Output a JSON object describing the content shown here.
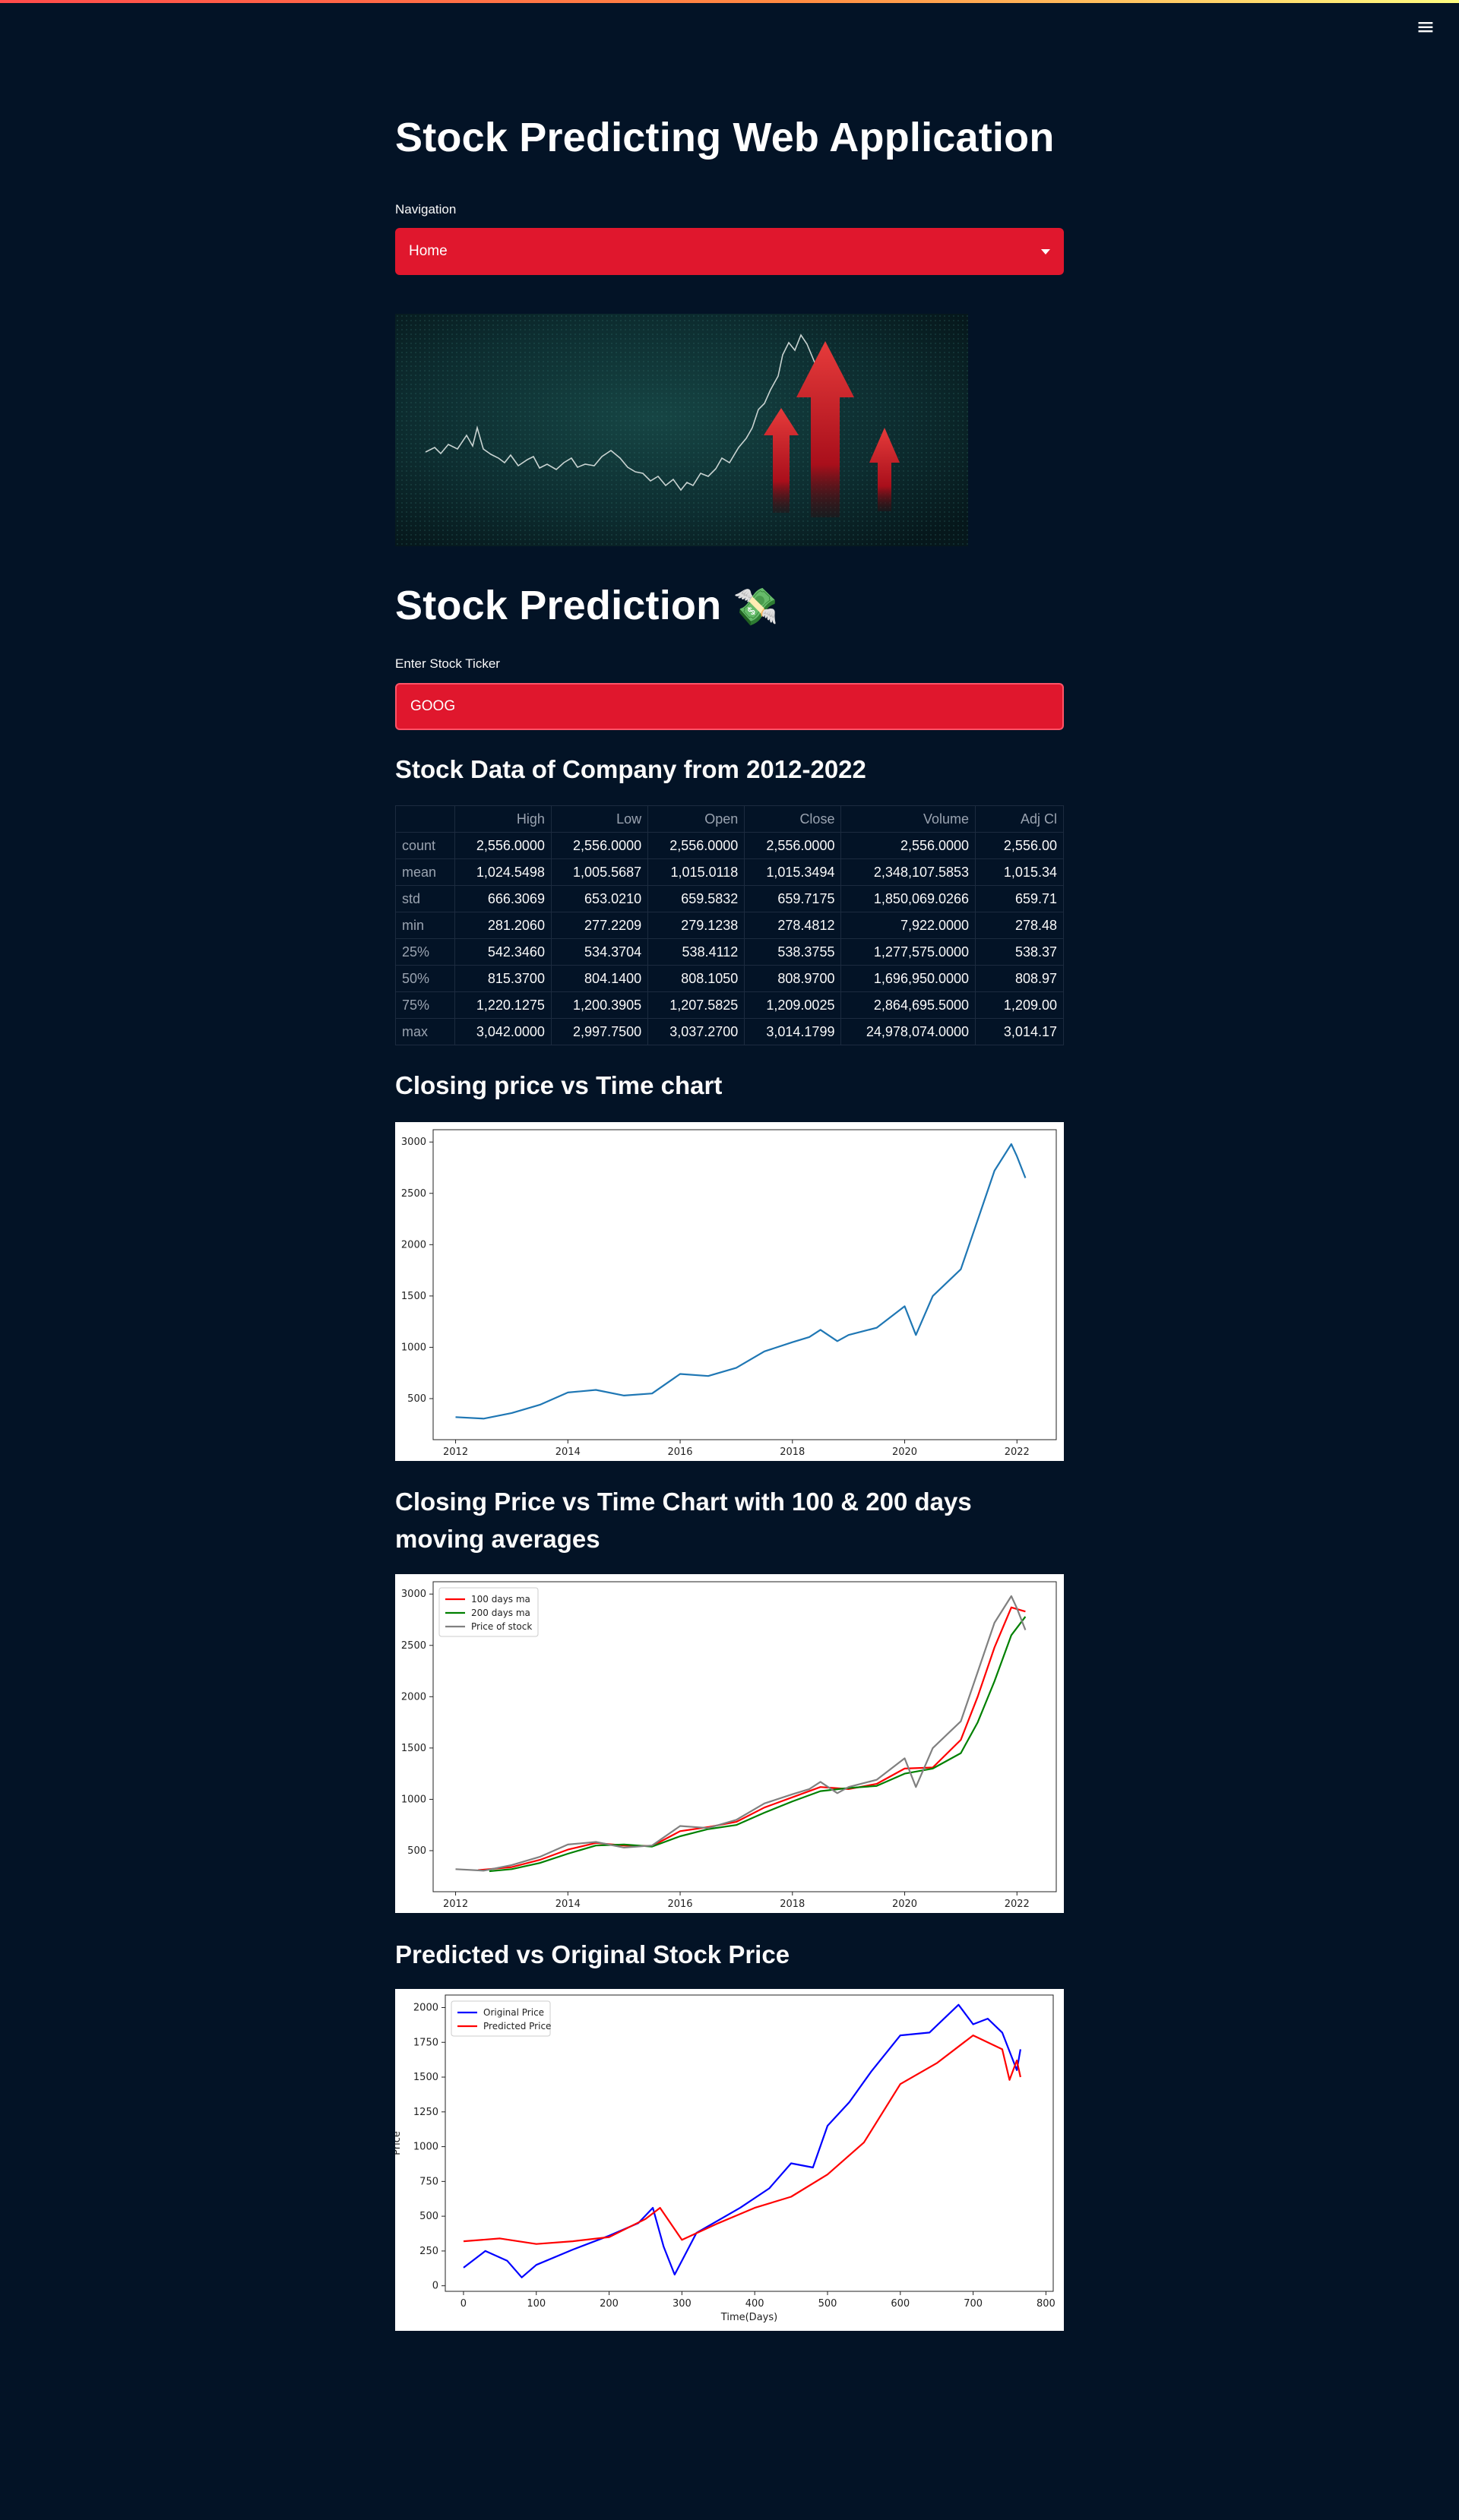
{
  "app": {
    "title": "Stock Predicting Web Application",
    "nav_label": "Navigation",
    "nav_selected": "Home",
    "menu_icon": "hamburger-icon"
  },
  "prediction": {
    "heading": "Stock Prediction",
    "emoji": "💸",
    "ticker_label": "Enter Stock Ticker",
    "ticker_value": "GOOG"
  },
  "data_section": {
    "heading": "Stock Data of Company from 2012-2022",
    "columns": [
      "",
      "High",
      "Low",
      "Open",
      "Close",
      "Volume",
      "Adj Cl"
    ],
    "rows": [
      [
        "count",
        "2,556.0000",
        "2,556.0000",
        "2,556.0000",
        "2,556.0000",
        "2,556.0000",
        "2,556.00"
      ],
      [
        "mean",
        "1,024.5498",
        "1,005.5687",
        "1,015.0118",
        "1,015.3494",
        "2,348,107.5853",
        "1,015.34"
      ],
      [
        "std",
        "666.3069",
        "653.0210",
        "659.5832",
        "659.7175",
        "1,850,069.0266",
        "659.71"
      ],
      [
        "min",
        "281.2060",
        "277.2209",
        "279.1238",
        "278.4812",
        "7,922.0000",
        "278.48"
      ],
      [
        "25%",
        "542.3460",
        "534.3704",
        "538.4112",
        "538.3755",
        "1,277,575.0000",
        "538.37"
      ],
      [
        "50%",
        "815.3700",
        "804.1400",
        "808.1050",
        "808.9700",
        "1,696,950.0000",
        "808.97"
      ],
      [
        "75%",
        "1,220.1275",
        "1,200.3905",
        "1,207.5825",
        "1,209.0025",
        "2,864,695.5000",
        "1,209.00"
      ],
      [
        "max",
        "3,042.0000",
        "2,997.7500",
        "3,037.2700",
        "3,014.1799",
        "24,978,074.0000",
        "3,014.17"
      ]
    ]
  },
  "charts": {
    "closing_heading": "Closing price vs Time chart",
    "ma_heading": "Closing Price vs Time Chart with 100 & 200 days moving averages",
    "pred_heading": "Predicted vs Original Stock Price"
  },
  "colors": {
    "background": "#031326",
    "accent_red": "#e0172d",
    "price_blue": "#1f77b4",
    "ma100_red": "#ff0000",
    "ma200_green": "#008000",
    "price_gray": "#808080",
    "original_blue": "#0000ff"
  },
  "chart_data": [
    {
      "id": "closing",
      "type": "line",
      "title": "",
      "xlabel": "",
      "ylabel": "",
      "xlim": [
        2011.6,
        2022.7
      ],
      "ylim": [
        100,
        3120
      ],
      "xticks": [
        2012,
        2014,
        2016,
        2018,
        2020,
        2022
      ],
      "yticks": [
        500,
        1000,
        1500,
        2000,
        2500,
        3000
      ],
      "series": [
        {
          "name": "Close",
          "color": "#1f77b4",
          "x": [
            2012.0,
            2012.5,
            2013.0,
            2013.5,
            2014.0,
            2014.5,
            2015.0,
            2015.5,
            2016.0,
            2016.5,
            2017.0,
            2017.5,
            2018.0,
            2018.3,
            2018.5,
            2018.8,
            2019.0,
            2019.5,
            2020.0,
            2020.2,
            2020.5,
            2021.0,
            2021.3,
            2021.6,
            2021.9,
            2022.0,
            2022.15
          ],
          "values": [
            320,
            305,
            360,
            440,
            560,
            585,
            530,
            550,
            740,
            720,
            800,
            960,
            1050,
            1100,
            1170,
            1060,
            1120,
            1190,
            1400,
            1120,
            1500,
            1760,
            2240,
            2720,
            2980,
            2860,
            2650
          ]
        }
      ]
    },
    {
      "id": "moving_averages",
      "type": "line",
      "title": "",
      "xlabel": "",
      "ylabel": "",
      "xlim": [
        2011.6,
        2022.7
      ],
      "ylim": [
        100,
        3120
      ],
      "xticks": [
        2012,
        2014,
        2016,
        2018,
        2020,
        2022
      ],
      "yticks": [
        500,
        1000,
        1500,
        2000,
        2500,
        3000
      ],
      "legend": "top-left",
      "series": [
        {
          "name": "100 days ma",
          "color": "#ff0000",
          "x": [
            2012.4,
            2013.0,
            2013.5,
            2014.0,
            2014.5,
            2015.0,
            2015.5,
            2016.0,
            2016.5,
            2017.0,
            2017.5,
            2018.0,
            2018.5,
            2019.0,
            2019.5,
            2020.0,
            2020.5,
            2021.0,
            2021.3,
            2021.6,
            2021.9,
            2022.15
          ],
          "values": [
            310,
            340,
            410,
            510,
            575,
            550,
            545,
            690,
            730,
            780,
            920,
            1020,
            1120,
            1100,
            1150,
            1300,
            1310,
            1580,
            2000,
            2480,
            2870,
            2830
          ]
        },
        {
          "name": "200 days ma",
          "color": "#008000",
          "x": [
            2012.6,
            2013.0,
            2013.5,
            2014.0,
            2014.5,
            2015.0,
            2015.5,
            2016.0,
            2016.5,
            2017.0,
            2017.5,
            2018.0,
            2018.5,
            2019.0,
            2019.5,
            2020.0,
            2020.5,
            2021.0,
            2021.3,
            2021.6,
            2021.9,
            2022.15
          ],
          "values": [
            300,
            320,
            380,
            470,
            550,
            560,
            540,
            640,
            710,
            750,
            870,
            980,
            1080,
            1110,
            1130,
            1250,
            1300,
            1450,
            1750,
            2150,
            2600,
            2780
          ]
        },
        {
          "name": "Price of stock",
          "color": "#808080",
          "x": [
            2012.0,
            2012.5,
            2013.0,
            2013.5,
            2014.0,
            2014.5,
            2015.0,
            2015.5,
            2016.0,
            2016.5,
            2017.0,
            2017.5,
            2018.0,
            2018.3,
            2018.5,
            2018.8,
            2019.0,
            2019.5,
            2020.0,
            2020.2,
            2020.5,
            2021.0,
            2021.3,
            2021.6,
            2021.9,
            2022.0,
            2022.15
          ],
          "values": [
            320,
            305,
            360,
            440,
            560,
            585,
            530,
            550,
            740,
            720,
            800,
            960,
            1050,
            1100,
            1170,
            1060,
            1120,
            1190,
            1400,
            1120,
            1500,
            1760,
            2240,
            2720,
            2980,
            2860,
            2650
          ]
        }
      ]
    },
    {
      "id": "predicted",
      "type": "line",
      "title": "",
      "xlabel": "Time(Days)",
      "ylabel": "Price",
      "xlim": [
        -25,
        810
      ],
      "ylim": [
        -40,
        2090
      ],
      "xticks": [
        0,
        100,
        200,
        300,
        400,
        500,
        600,
        700,
        800
      ],
      "yticks": [
        0,
        250,
        500,
        750,
        1000,
        1250,
        1500,
        1750,
        2000
      ],
      "legend": "top-left",
      "series": [
        {
          "name": "Original Price",
          "color": "#0000ff",
          "x": [
            0,
            30,
            60,
            80,
            100,
            150,
            200,
            240,
            260,
            275,
            290,
            320,
            380,
            420,
            450,
            480,
            500,
            530,
            560,
            600,
            640,
            680,
            700,
            720,
            740,
            760,
            765
          ],
          "values": [
            130,
            250,
            180,
            60,
            150,
            260,
            360,
            450,
            560,
            280,
            80,
            380,
            560,
            700,
            880,
            850,
            1150,
            1320,
            1540,
            1800,
            1820,
            2020,
            1880,
            1920,
            1820,
            1550,
            1700
          ]
        },
        {
          "name": "Predicted Price",
          "color": "#ff0000",
          "x": [
            0,
            50,
            100,
            150,
            200,
            250,
            270,
            300,
            350,
            400,
            450,
            500,
            550,
            600,
            650,
            700,
            740,
            750,
            760,
            765
          ],
          "values": [
            320,
            340,
            300,
            320,
            350,
            480,
            560,
            330,
            450,
            560,
            640,
            800,
            1030,
            1450,
            1600,
            1800,
            1700,
            1480,
            1620,
            1500
          ]
        }
      ]
    }
  ]
}
